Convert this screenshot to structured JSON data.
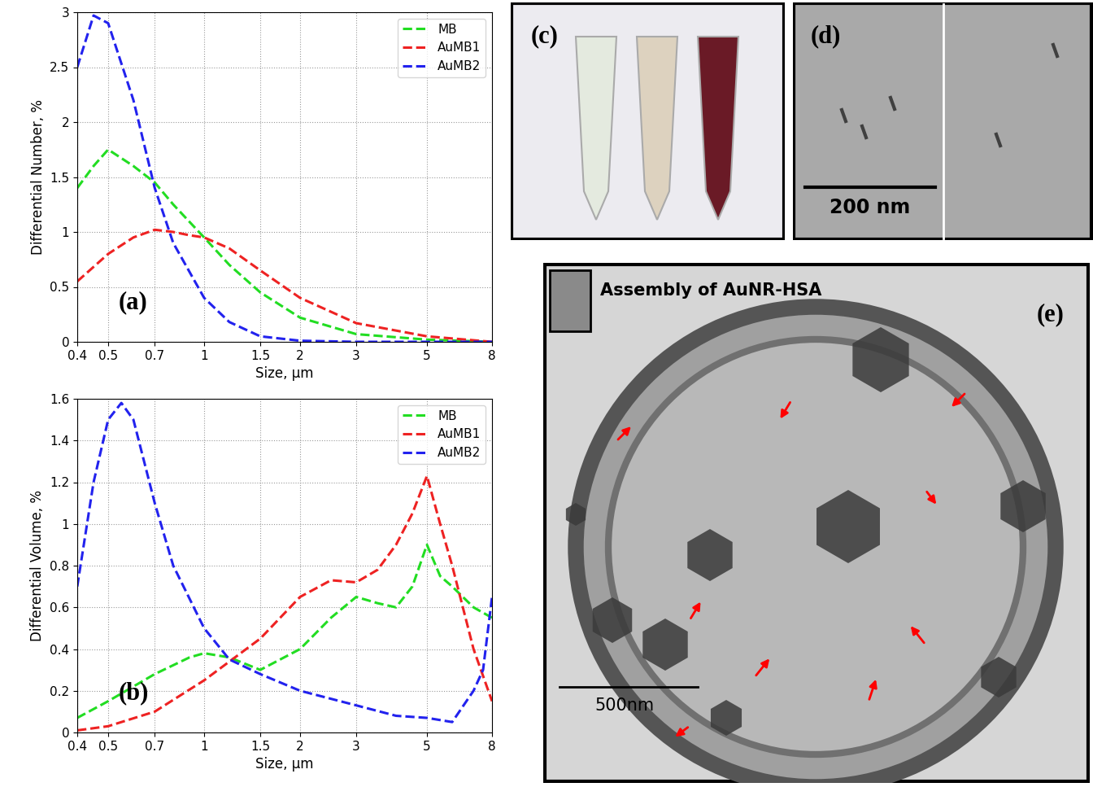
{
  "chart_data": [
    {
      "type": "line",
      "x_label": "Size, µm",
      "y_label": "Differential Number, %",
      "annotations": [
        "(a)"
      ],
      "log": "x",
      "grid": true,
      "legend": "upper right",
      "line_style": "dashed",
      "xlim": [
        0.4,
        8
      ],
      "xticks": [
        0.4,
        0.5,
        0.7,
        1,
        1.5,
        2,
        3,
        5,
        8
      ],
      "ylim": [
        0,
        3
      ],
      "yticks": [
        0,
        0.5,
        1,
        1.5,
        2,
        2.5,
        3
      ],
      "series": [
        {
          "name": "MB",
          "color": "#22dd22",
          "x": [
            0.4,
            0.45,
            0.5,
            0.6,
            0.7,
            0.8,
            1,
            1.2,
            1.5,
            2,
            3,
            5,
            8
          ],
          "values": [
            1.4,
            1.6,
            1.75,
            1.6,
            1.45,
            1.25,
            0.95,
            0.7,
            0.45,
            0.22,
            0.07,
            0.02,
            0
          ]
        },
        {
          "name": "AuMB1",
          "color": "#ee2222",
          "x": [
            0.4,
            0.5,
            0.6,
            0.7,
            0.8,
            0.9,
            1,
            1.2,
            1.5,
            2,
            3,
            5,
            8
          ],
          "values": [
            0.55,
            0.8,
            0.95,
            1.02,
            1.0,
            0.97,
            0.95,
            0.85,
            0.65,
            0.4,
            0.17,
            0.05,
            0
          ]
        },
        {
          "name": "AuMB2",
          "color": "#2222ee",
          "x": [
            0.4,
            0.45,
            0.5,
            0.6,
            0.7,
            0.8,
            1,
            1.2,
            1.5,
            2,
            3,
            5,
            8
          ],
          "values": [
            2.5,
            2.97,
            2.9,
            2.2,
            1.4,
            0.9,
            0.4,
            0.18,
            0.05,
            0.01,
            0,
            0,
            0
          ]
        }
      ]
    },
    {
      "type": "line",
      "x_label": "Size, µm",
      "y_label": "Differential Volume, %",
      "annotations": [
        "(b)"
      ],
      "log": "x",
      "grid": true,
      "legend": "upper right",
      "line_style": "dashed",
      "xlim": [
        0.4,
        8
      ],
      "xticks": [
        0.4,
        0.5,
        0.7,
        1,
        1.5,
        2,
        3,
        5,
        8
      ],
      "ylim": [
        0,
        1.6
      ],
      "yticks": [
        0,
        0.2,
        0.4,
        0.6,
        0.8,
        1,
        1.2,
        1.4,
        1.6
      ],
      "series": [
        {
          "name": "MB",
          "color": "#22dd22",
          "x": [
            0.4,
            0.5,
            0.7,
            0.9,
            1,
            1.2,
            1.5,
            2,
            2.5,
            3,
            3.5,
            4,
            4.5,
            5,
            5.5,
            6,
            7,
            8
          ],
          "values": [
            0.07,
            0.15,
            0.28,
            0.36,
            0.38,
            0.36,
            0.3,
            0.4,
            0.55,
            0.65,
            0.62,
            0.6,
            0.7,
            0.9,
            0.75,
            0.7,
            0.6,
            0.55
          ]
        },
        {
          "name": "AuMB1",
          "color": "#ee2222",
          "x": [
            0.4,
            0.5,
            0.7,
            1,
            1.5,
            2,
            2.5,
            3,
            3.5,
            4,
            4.5,
            5,
            5.5,
            6,
            7,
            8
          ],
          "values": [
            0.01,
            0.03,
            0.1,
            0.25,
            0.45,
            0.65,
            0.73,
            0.72,
            0.78,
            0.9,
            1.05,
            1.23,
            1.0,
            0.8,
            0.4,
            0.15
          ]
        },
        {
          "name": "AuMB2",
          "color": "#2222ee",
          "x": [
            0.4,
            0.45,
            0.5,
            0.55,
            0.6,
            0.7,
            0.8,
            1,
            1.2,
            1.5,
            2,
            3,
            4,
            5,
            6,
            7,
            7.5,
            8
          ],
          "values": [
            0.7,
            1.2,
            1.5,
            1.58,
            1.5,
            1.1,
            0.8,
            0.5,
            0.35,
            0.28,
            0.2,
            0.13,
            0.08,
            0.07,
            0.05,
            0.2,
            0.3,
            0.65
          ]
        }
      ]
    }
  ],
  "panels": {
    "c": {
      "label": "(c)"
    },
    "d": {
      "label": "(d)",
      "scale_bar": "200 nm"
    },
    "e": {
      "label": "(e)",
      "title": "Assembly of AuNR-HSA",
      "scale_bar": "500nm"
    }
  }
}
